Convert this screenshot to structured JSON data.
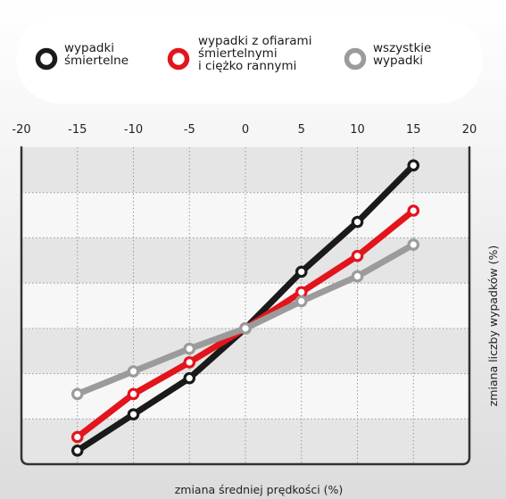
{
  "chart_data": {
    "type": "line",
    "title": "",
    "xlabel": "zmiana średniej prędkości (%)",
    "ylabel": "zmiana liczby wypadków (%)",
    "xlim": [
      -20,
      20
    ],
    "ylim": [
      -60,
      80
    ],
    "x_ticks": [
      "-20",
      "-15",
      "-10",
      "-5",
      "0",
      "5",
      "10",
      "15",
      "20"
    ],
    "grid": true,
    "legend_position": "top",
    "x": [
      -15,
      -10,
      -5,
      0,
      5,
      10,
      15
    ],
    "series": [
      {
        "name": "wypadki śmiertelne",
        "legend_lines": [
          "wypadki",
          "śmiertelne"
        ],
        "color": "#1a1a1a",
        "values": [
          -54,
          -38,
          -22,
          0,
          25,
          47,
          72
        ]
      },
      {
        "name": "wypadki z ofiarami śmiertelnymi i ciężko rannymi",
        "legend_lines": [
          "wypadki z ofiarami",
          "śmiertelnymi",
          "i ciężko rannymi"
        ],
        "color": "#e3141c",
        "values": [
          -48,
          -29,
          -15,
          0,
          16,
          32,
          52
        ]
      },
      {
        "name": "wszystkie wypadki",
        "legend_lines": [
          "wszystkie",
          "wypadki"
        ],
        "color": "#9b9b9b",
        "values": [
          -29,
          -19,
          -9,
          0,
          12,
          23,
          37
        ]
      }
    ]
  }
}
